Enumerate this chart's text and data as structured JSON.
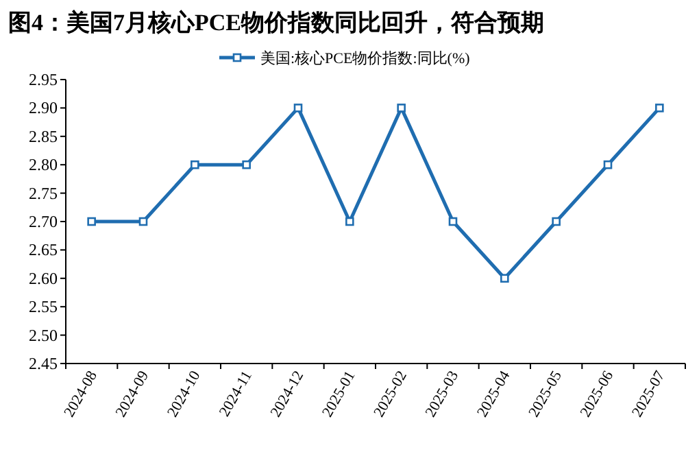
{
  "chart_data": {
    "type": "line",
    "title": "图4：美国7月核心PCE物价指数同比回升，符合预期",
    "categories": [
      "2024-08",
      "2024-09",
      "2024-10",
      "2024-11",
      "2024-12",
      "2025-01",
      "2025-02",
      "2025-03",
      "2025-04",
      "2025-05",
      "2025-06",
      "2025-07"
    ],
    "series": [
      {
        "name": "美国:核心PCE物价指数:同比(%)",
        "color": "#1f6db0",
        "values": [
          2.7,
          2.7,
          2.8,
          2.8,
          2.9,
          2.7,
          2.9,
          2.7,
          2.6,
          2.7,
          2.8,
          2.9
        ]
      }
    ],
    "ylim": [
      2.45,
      2.95
    ],
    "yticks": [
      2.45,
      {
        "value": 2.5,
        "label": "2.50"
      },
      2.55,
      {
        "value": 2.6,
        "label": "2.60"
      },
      2.65,
      {
        "value": 2.7,
        "label": "2.70"
      },
      2.75,
      {
        "value": 2.8,
        "label": "2.80"
      },
      2.85,
      {
        "value": 2.9,
        "label": "2.90"
      },
      2.95
    ],
    "marker": "square",
    "line_style": "solid",
    "legend": "top",
    "grid": false
  }
}
